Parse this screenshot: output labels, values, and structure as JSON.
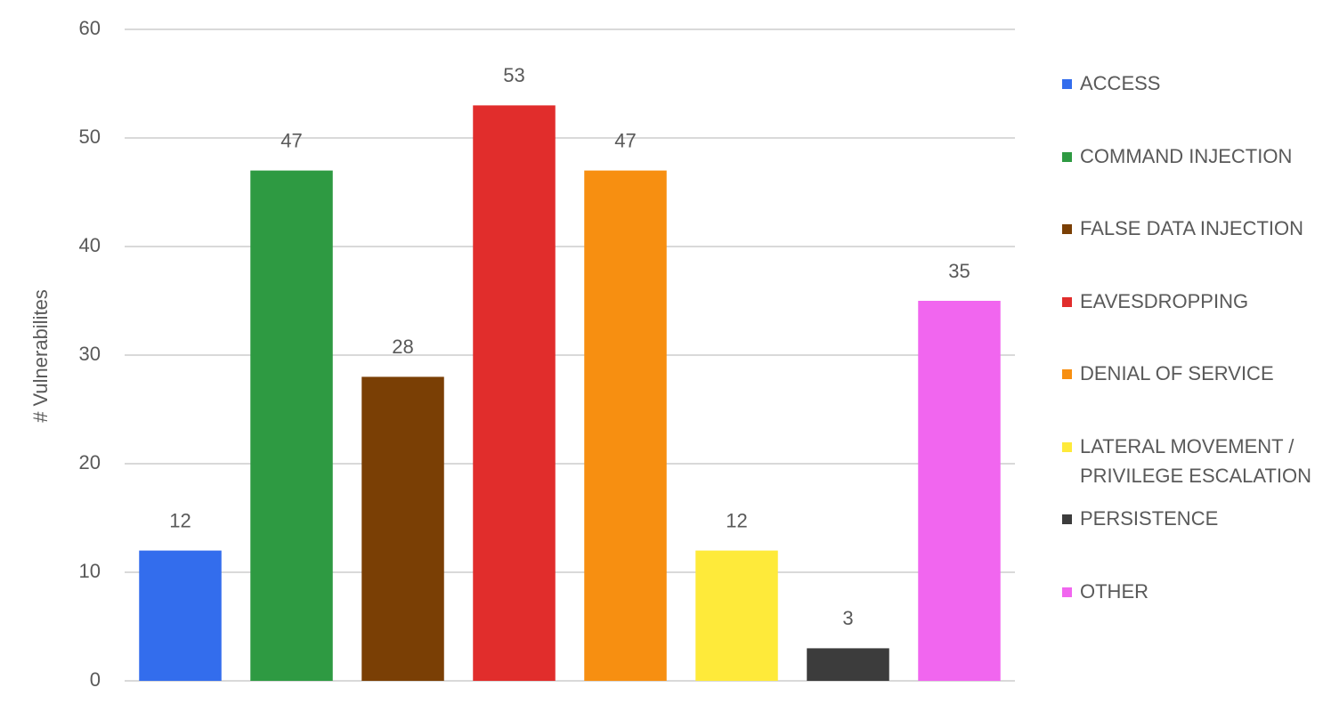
{
  "chart_data": {
    "type": "bar",
    "y_label": "# Vulnerabilites",
    "categories": [
      null
    ],
    "series": [
      {
        "name": "ACCESS",
        "color": "#336ded",
        "values": [
          12
        ]
      },
      {
        "name": "COMMAND INJECTION",
        "color": "#2e9a42",
        "values": [
          47
        ]
      },
      {
        "name": "FALSE DATA INJECTION",
        "color": "#7a3f05",
        "values": [
          28
        ]
      },
      {
        "name": "EAVESDROPPING",
        "color": "#e12d2c",
        "values": [
          53
        ]
      },
      {
        "name": "DENIAL OF SERVICE",
        "color": "#f78f11",
        "values": [
          47
        ]
      },
      {
        "name": "LATERAL MOVEMENT / PRIVILEGE ESCALATION",
        "color": "#feea3a",
        "values": [
          12
        ]
      },
      {
        "name": "PERSISTENCE",
        "color": "#3c3c3c",
        "values": [
          3
        ]
      },
      {
        "name": "OTHER",
        "color": "#f166ef",
        "values": [
          35
        ]
      }
    ],
    "ylim": [
      0,
      60
    ],
    "yticks": [
      0,
      10,
      20,
      30,
      40,
      50,
      60
    ],
    "grid": true,
    "legend": "right"
  }
}
